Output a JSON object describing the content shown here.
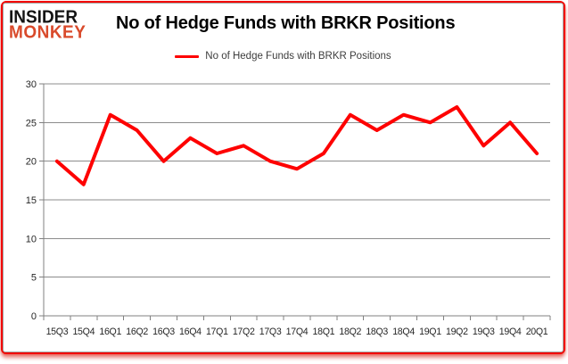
{
  "brand": {
    "line1": "INSIDER",
    "line2": "MONKEY"
  },
  "header": {
    "title": "No of Hedge Funds with BRKR Positions"
  },
  "legend": {
    "label": "No of Hedge Funds with BRKR Positions"
  },
  "colors": {
    "brand_black": "#141414",
    "brand_red": "#d94a2b",
    "series_red": "#fe0101",
    "frame_red": "#f30400",
    "grid_gray": "#8c8c8c",
    "axis_gray": "#808080",
    "tick_label": "#262626"
  },
  "chart_data": {
    "type": "line",
    "title": "No of Hedge Funds with BRKR Positions",
    "categories": [
      "15Q3",
      "15Q4",
      "16Q1",
      "16Q2",
      "16Q3",
      "16Q4",
      "17Q1",
      "17Q2",
      "17Q3",
      "17Q4",
      "18Q1",
      "18Q2",
      "18Q3",
      "18Q4",
      "19Q1",
      "19Q2",
      "19Q3",
      "19Q4",
      "20Q1"
    ],
    "series": [
      {
        "name": "No of Hedge Funds with BRKR Positions",
        "color": "#fe0101",
        "values": [
          20,
          17,
          26,
          24,
          20,
          23,
          21,
          22,
          20,
          19,
          21,
          26,
          24,
          26,
          25,
          27,
          22,
          25,
          21
        ]
      }
    ],
    "xlabel": "",
    "ylabel": "",
    "ylim": [
      0,
      30
    ],
    "yticks": [
      0,
      5,
      10,
      15,
      20,
      25,
      30
    ],
    "grid": true,
    "legend_position": "top"
  }
}
